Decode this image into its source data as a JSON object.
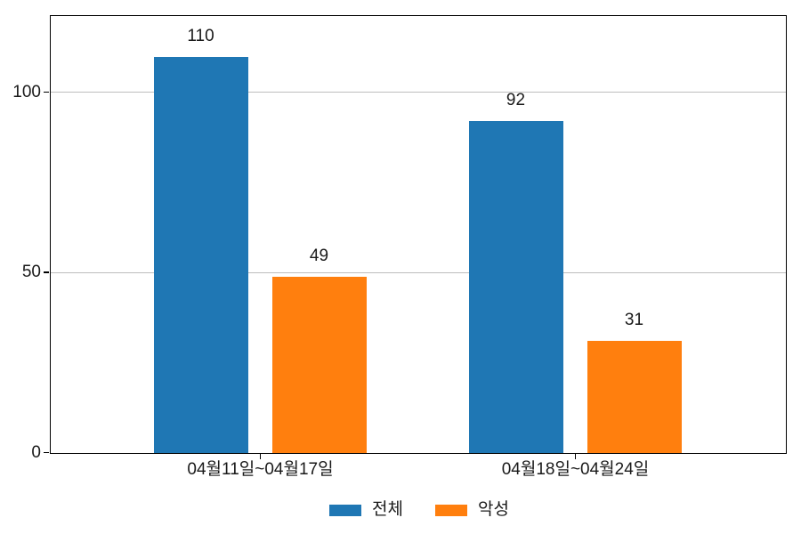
{
  "figure": {
    "background": "#ffffff",
    "text_color": "#1a1a1a",
    "grid_color": "#bdbdbd",
    "spine_color": "#000000"
  },
  "chart_data": {
    "type": "bar",
    "title": "",
    "xlabel": "",
    "ylabel": "",
    "categories": [
      "04월11일~04월17일",
      "04월18일~04월24일"
    ],
    "series": [
      {
        "name": "전체",
        "color": "#1f77b4",
        "values": [
          110,
          92
        ]
      },
      {
        "name": "악성",
        "color": "#ff7f0e",
        "values": [
          49,
          31
        ]
      }
    ],
    "value_labels": [
      "110",
      "49",
      "92",
      "31"
    ],
    "ylim": [
      0,
      121
    ],
    "yticks": [
      0,
      50,
      100
    ],
    "ytick_labels": [
      "0",
      "50",
      "100"
    ],
    "grid": "horizontal",
    "legend_position": "bottom-center",
    "legend_items": [
      {
        "label": "전체",
        "color": "#1f77b4"
      },
      {
        "label": "악성",
        "color": "#ff7f0e"
      }
    ]
  }
}
